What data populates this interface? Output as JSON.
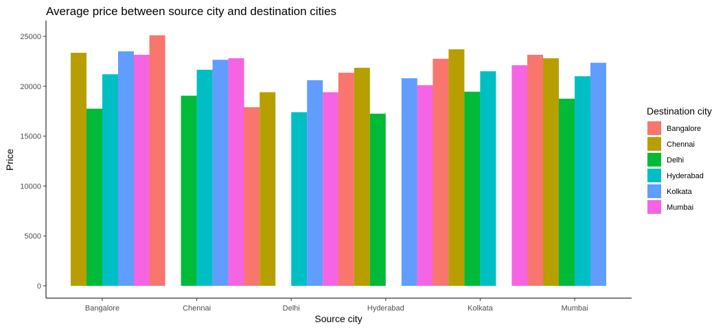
{
  "chart_data": {
    "type": "bar",
    "title": "Average price between source city and destination cities",
    "xlabel": "Source city",
    "ylabel": "Price",
    "ylim": [
      0,
      26200
    ],
    "yticks": [
      0,
      5000,
      10000,
      15000,
      20000,
      25000
    ],
    "grid": false,
    "legend": {
      "title": "Destination city",
      "position": "right"
    },
    "categories": [
      "Bangalore",
      "Chennai",
      "Delhi",
      "Hyderabad",
      "Kolkata",
      "Mumbai"
    ],
    "series": [
      {
        "name": "Bangalore",
        "color": "#F8766D",
        "values": [
          null,
          25100,
          17900,
          21350,
          22750,
          23150
        ]
      },
      {
        "name": "Chennai",
        "color": "#B79F00",
        "values": [
          23350,
          null,
          19400,
          21850,
          23700,
          22800
        ]
      },
      {
        "name": "Delhi",
        "color": "#00BA38",
        "values": [
          17750,
          19050,
          null,
          17250,
          19450,
          18750
        ]
      },
      {
        "name": "Hyderabad",
        "color": "#00BFC4",
        "values": [
          21200,
          21650,
          17400,
          null,
          21500,
          21000
        ]
      },
      {
        "name": "Kolkata",
        "color": "#619CFF",
        "values": [
          23500,
          22650,
          20600,
          20800,
          null,
          22350
        ]
      },
      {
        "name": "Mumbai",
        "color": "#F564E3",
        "values": [
          23150,
          22800,
          19400,
          20100,
          22100,
          null
        ]
      }
    ]
  }
}
